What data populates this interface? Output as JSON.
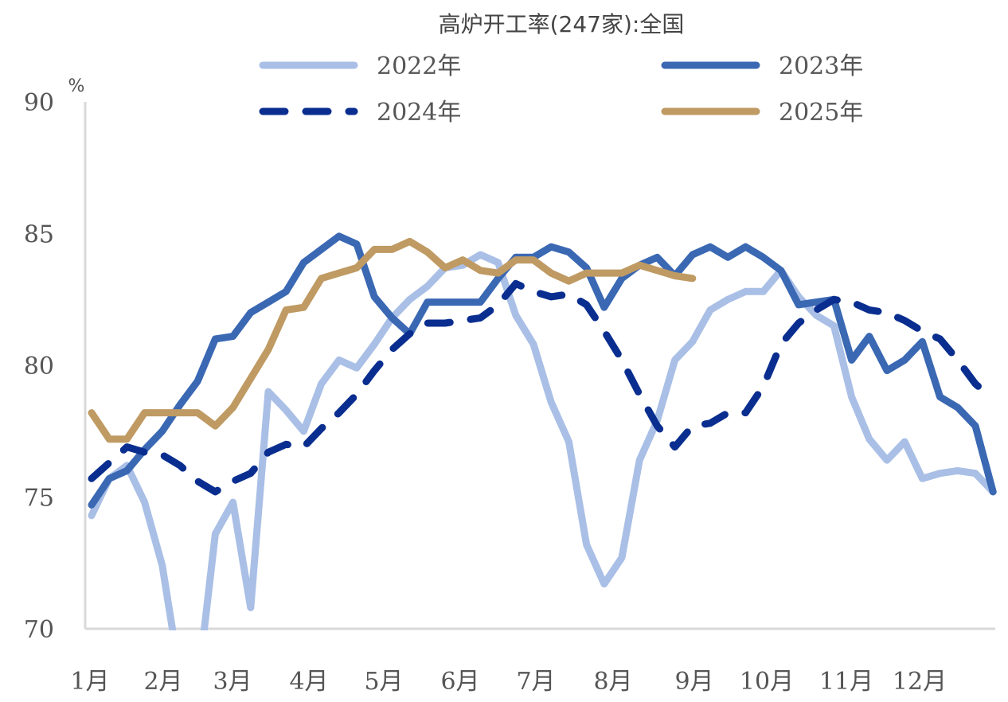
{
  "chart_data": {
    "type": "line",
    "title": "高炉开工率(247家):全国",
    "ylabel": "%",
    "ylim": [
      70,
      90
    ],
    "yticks": [
      "70",
      "75",
      "80",
      "85",
      "90"
    ],
    "xticks": [
      "1月",
      "2月",
      "3月",
      "4月",
      "5月",
      "6月",
      "7月",
      "8月",
      "9月",
      "10月",
      "11月",
      "12月"
    ],
    "x_unit": "week",
    "grid": false,
    "legend": "top",
    "series": [
      {
        "name": "2022年",
        "color": "#a9bfe6",
        "dashed": false,
        "values": [
          74.3,
          75.7,
          76.2,
          74.8,
          72.4,
          68.2,
          67.8,
          73.6,
          74.8,
          70.8,
          79.0,
          78.3,
          77.5,
          79.3,
          80.2,
          79.9,
          80.8,
          81.8,
          82.5,
          83.0,
          83.7,
          83.8,
          84.2,
          83.9,
          81.9,
          80.8,
          78.6,
          77.1,
          73.2,
          71.7,
          72.7,
          76.4,
          77.9,
          80.2,
          80.9,
          82.1,
          82.5,
          82.8,
          82.8,
          83.6,
          82.6,
          81.9,
          81.5,
          78.8,
          77.2,
          76.4,
          77.1,
          75.7,
          75.9,
          76.0,
          75.9,
          75.2
        ]
      },
      {
        "name": "2023年",
        "color": "#3a68b3",
        "dashed": false,
        "values": [
          74.7,
          75.7,
          76.0,
          76.8,
          77.5,
          78.5,
          79.4,
          81.0,
          81.1,
          82.0,
          82.4,
          82.8,
          83.9,
          84.4,
          84.9,
          84.6,
          82.6,
          81.8,
          81.2,
          82.4,
          82.4,
          82.4,
          82.4,
          83.3,
          84.1,
          84.1,
          84.5,
          84.3,
          83.7,
          82.2,
          83.3,
          83.8,
          84.1,
          83.4,
          84.2,
          84.5,
          84.1,
          84.5,
          84.1,
          83.6,
          82.3,
          82.4,
          82.5,
          80.2,
          81.1,
          79.8,
          80.2,
          80.9,
          78.8,
          78.4,
          77.7,
          75.2
        ]
      },
      {
        "name": "2024年",
        "color": "#0a2e8f",
        "dashed": true,
        "values": [
          75.7,
          76.3,
          76.9,
          76.7,
          76.6,
          76.2,
          75.6,
          75.2,
          75.6,
          75.9,
          76.7,
          77.0,
          76.9,
          77.6,
          78.2,
          78.9,
          79.8,
          80.6,
          81.2,
          81.6,
          81.6,
          81.7,
          81.8,
          82.3,
          83.1,
          82.8,
          82.6,
          82.7,
          82.3,
          81.3,
          80.2,
          78.9,
          77.7,
          76.9,
          77.7,
          77.8,
          78.2,
          78.2,
          79.2,
          80.8,
          81.6,
          82.1,
          82.5,
          82.4,
          82.1,
          82.0,
          81.7,
          81.3,
          81.0,
          80.2,
          79.3,
          78.7
        ]
      },
      {
        "name": "2025年",
        "color": "#bf9a63",
        "dashed": false,
        "values": [
          78.2,
          77.2,
          77.2,
          78.2,
          78.2,
          78.2,
          78.2,
          77.7,
          78.4,
          79.5,
          80.6,
          82.1,
          82.2,
          83.3,
          83.5,
          83.7,
          84.4,
          84.4,
          84.7,
          84.3,
          83.7,
          84.0,
          83.6,
          83.5,
          84.0,
          84.0,
          83.5,
          83.2,
          83.5,
          83.5,
          83.5,
          83.8,
          83.6,
          83.4,
          83.3
        ]
      }
    ]
  }
}
